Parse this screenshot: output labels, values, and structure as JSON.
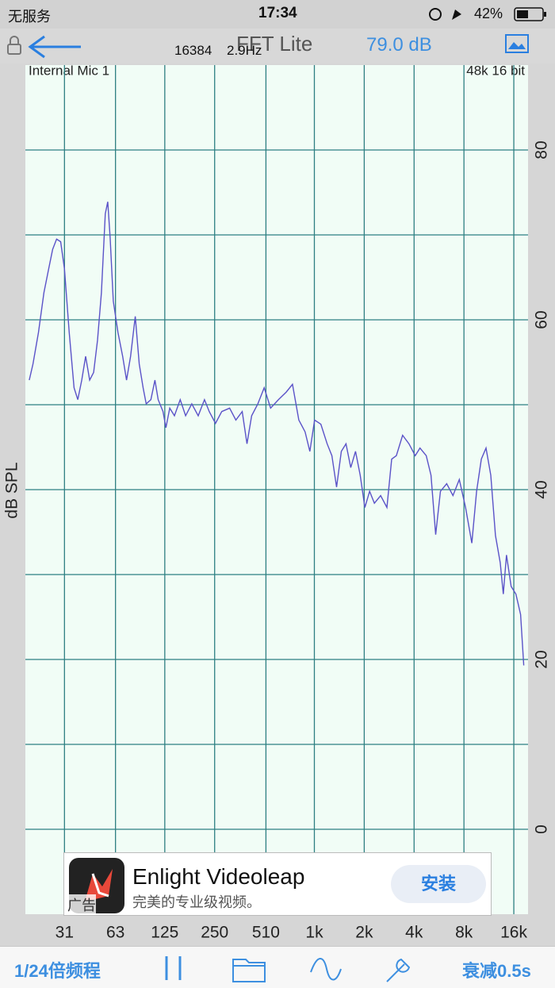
{
  "status_bar": {
    "carrier": "无服务",
    "time": "17:34",
    "battery": "42%"
  },
  "nav_bar": {
    "fft_size": "16384",
    "resolution": "2.9Hz",
    "title": "FFT Lite",
    "level": "79.0 dB"
  },
  "chart_data": {
    "type": "line",
    "input_label": "Internal Mic 1",
    "format_label": "48k 16 bit",
    "y_axis_label": "dB SPL",
    "log_x": true,
    "grid": true,
    "y_axis_side": "right",
    "color": "#5a52c8",
    "xlim": [
      18,
      19500
    ],
    "ylim": [
      -10,
      90
    ],
    "xticks": [
      31,
      63,
      125,
      250,
      510,
      {
        "value": 1000,
        "label": "1k"
      },
      {
        "value": 2000,
        "label": "2k"
      },
      {
        "value": 4000,
        "label": "4k"
      },
      {
        "value": 8000,
        "label": "8k"
      },
      {
        "value": 16000,
        "label": "16k"
      }
    ],
    "yticks": [
      0,
      20,
      40,
      60,
      80
    ],
    "x": [
      19,
      20,
      21.6,
      23.3,
      24.9,
      26.3,
      27.8,
      29.4,
      31,
      33.1,
      35.4,
      37.3,
      39.4,
      41.6,
      44,
      46.5,
      49.1,
      51.8,
      54.7,
      56.6,
      58.5,
      61.1,
      65.2,
      69.6,
      73.5,
      77.7,
      82.9,
      87.6,
      92.5,
      96.6,
      103,
      109,
      114,
      122,
      127,
      134,
      143,
      155,
      167,
      182,
      199,
      217,
      232,
      253,
      276,
      308,
      336,
      367,
      392,
      418,
      456,
      498,
      544,
      607,
      677,
      738,
      806,
      879,
      939,
      1003,
      1095,
      1194,
      1276,
      1362,
      1455,
      1553,
      1658,
      1771,
      1891,
      2019,
      2156,
      2303,
      2513,
      2742,
      2929,
      3127,
      3412,
      3726,
      4065,
      4341,
      4738,
      5059,
      5402,
      5767,
      6295,
      6870,
      7498,
      8182,
      8929,
      9535,
      10183,
      10871,
      11610,
      12400,
      13237,
      13826,
      14443,
      15426,
      16477,
      17589,
      18377
    ],
    "values": [
      52.9,
      54.8,
      58.5,
      63.2,
      66,
      68.3,
      69.5,
      69.2,
      66,
      58.5,
      52,
      50.6,
      52.9,
      55.7,
      52.9,
      53.8,
      57.6,
      63.2,
      72.5,
      73.9,
      69.7,
      62.2,
      58.5,
      55.7,
      52.9,
      55.7,
      60.4,
      54.8,
      52,
      50.1,
      50.6,
      52.9,
      50.6,
      49.2,
      47.3,
      49.6,
      48.7,
      50.6,
      48.7,
      50.1,
      48.7,
      50.6,
      49.2,
      47.8,
      49.2,
      49.6,
      48.2,
      49.2,
      45.4,
      48.7,
      50.1,
      52,
      49.6,
      50.6,
      51.5,
      52.4,
      48.2,
      46.8,
      44.5,
      48.2,
      47.7,
      45.4,
      44,
      40.3,
      44.5,
      45.4,
      42.6,
      44.5,
      41.7,
      37.9,
      39.8,
      38.4,
      39.3,
      37.9,
      43.6,
      44,
      46.4,
      45.4,
      44,
      44.9,
      44,
      41.7,
      34.7,
      39.8,
      40.7,
      39.3,
      41.2,
      37.9,
      33.7,
      39.8,
      43.6,
      44.9,
      41.7,
      34.6,
      31.4,
      27.7,
      32.3,
      28.6,
      27.7,
      25.3,
      19.3
    ]
  },
  "ad": {
    "title": "Enlight Videoleap",
    "subtitle": "完美的专业级视频。",
    "button": "安装",
    "badge": "广告"
  },
  "toolbar": {
    "resolution": "1/24倍频程",
    "decay": "衰减0.5s"
  }
}
